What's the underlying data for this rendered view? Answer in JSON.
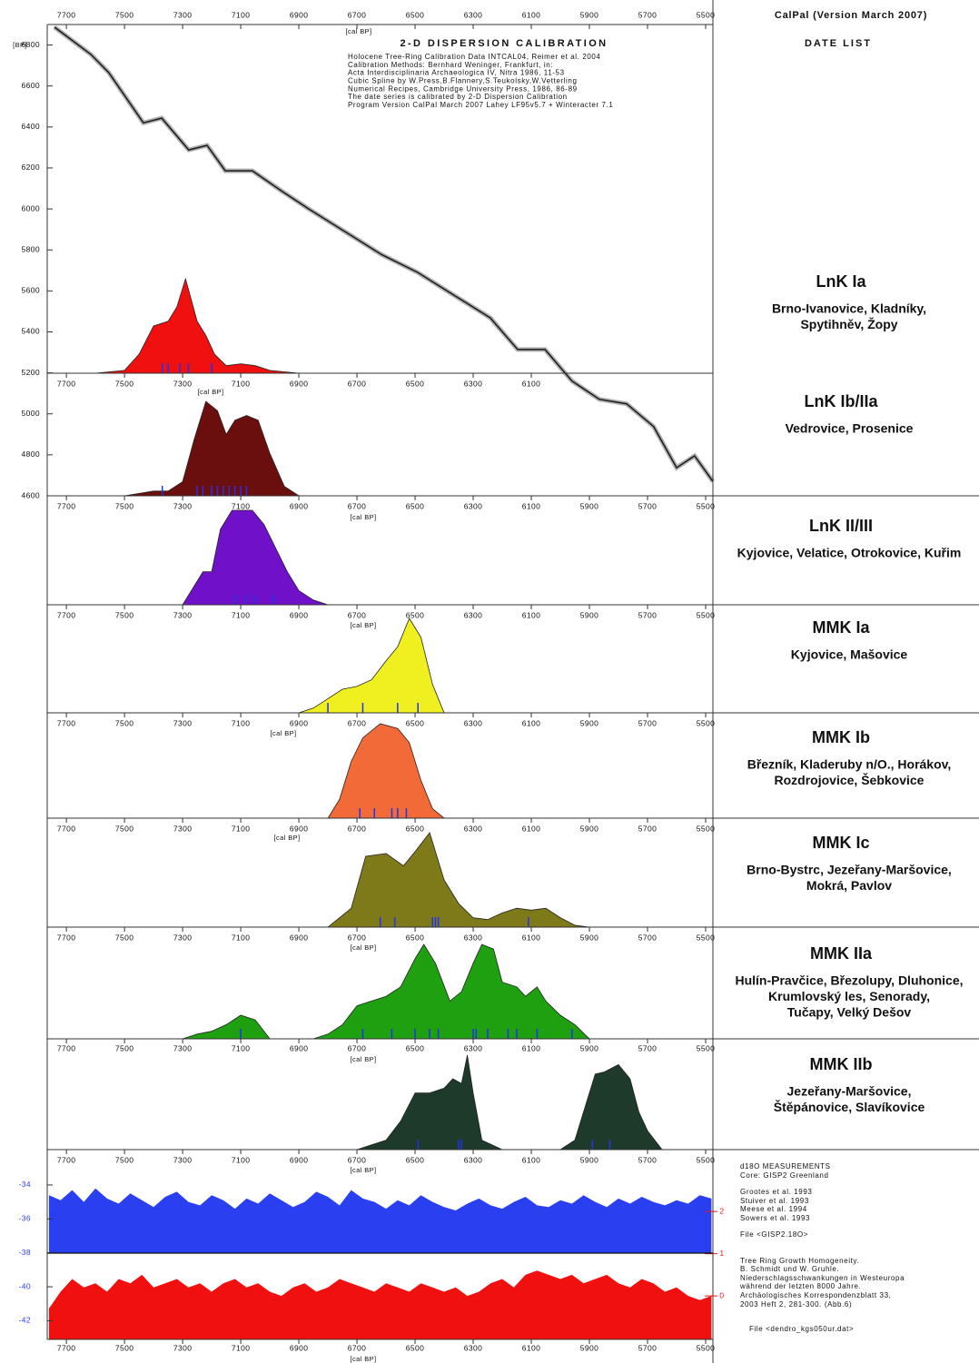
{
  "header": {
    "app": "CalPal (Version March 2007)",
    "list_title": "DATE LIST"
  },
  "chart_data": [
    {
      "type": "line",
      "title": "2-D DISPERSION CALIBRATION",
      "notes": [
        "Holocene Tree-Ring Calibration Data INTCAL04, Reimer et al. 2004",
        "Calibration Methods: Bernhard Weninger, Frankfurt, in:",
        "Acta Interdisciplinaria Archaeologica IV, Nitra 1986, 11-53",
        "Cubic Spline by W.Press,B.Flannery,S.Teukolsky,W.Vetterling",
        "Numerical Recipes, Cambridge University Press, 1986, 86-89",
        "The date series is calibrated by 2-D Dispersion Calibration",
        "Program Version CalPal March 2007 Lahey LF95v5.7 + Winteracter 7.1"
      ],
      "xlabel": "[cal BP]",
      "ylabel": "[BP]",
      "xlim": [
        7766,
        5475
      ],
      "xticks": [
        7700,
        7500,
        7300,
        7100,
        6900,
        6700,
        6500,
        6300,
        6100,
        5900,
        5700,
        5500
      ],
      "ylim": [
        4600,
        6900
      ],
      "yticks": [
        4600,
        4800,
        5000,
        5200,
        5400,
        5600,
        5800,
        6000,
        6200,
        6400,
        6600,
        6800
      ],
      "color": "#1a1a1a",
      "x": [
        7741,
        7616,
        7554,
        7435,
        7372,
        7279,
        7216,
        7153,
        7060,
        6960,
        6866,
        6741,
        6616,
        6491,
        6366,
        6241,
        6147,
        6053,
        5960,
        5866,
        5772,
        5679,
        5600,
        5538,
        5475
      ],
      "values": [
        6887,
        6754,
        6665,
        6420,
        6443,
        6288,
        6310,
        6186,
        6186,
        6088,
        6000,
        5889,
        5778,
        5690,
        5579,
        5468,
        5314,
        5314,
        5160,
        5071,
        5049,
        4938,
        4737,
        4795,
        4670
      ]
    },
    {
      "type": "area",
      "name": "LnK Ia",
      "sites": [
        "Brno-Ivanovice, Kladníky,",
        "Spytihněv, Žopy"
      ],
      "color": "#f01010",
      "date_color": "#2233ee",
      "ylim": [
        0,
        100
      ],
      "x": [
        7600,
        7500,
        7450,
        7400,
        7350,
        7320,
        7290,
        7250,
        7220,
        7190,
        7150,
        7100,
        7050,
        7000,
        6900
      ],
      "values": [
        0,
        3,
        20,
        50,
        55,
        70,
        100,
        55,
        40,
        20,
        8,
        10,
        8,
        3,
        0
      ],
      "dates": [
        7370,
        7350,
        7310,
        7280,
        7200
      ]
    },
    {
      "type": "area",
      "name": "LnK Ib/IIa",
      "sites": [
        "Vedrovice, Prosenice"
      ],
      "color": "#6b0e0e",
      "date_color": "#2233ee",
      "ylim": [
        0,
        100
      ],
      "xlabel": "[cal BP]",
      "xlim": [
        7766,
        5475
      ],
      "xticks": [
        7700,
        7500,
        7300,
        7100,
        6900,
        6700,
        6500,
        6300,
        6100
      ],
      "x": [
        7500,
        7400,
        7350,
        7300,
        7260,
        7220,
        7180,
        7150,
        7120,
        7080,
        7040,
        7000,
        6950,
        6900
      ],
      "values": [
        0,
        5,
        5,
        15,
        60,
        100,
        90,
        65,
        80,
        85,
        80,
        45,
        10,
        0
      ],
      "dates": [
        7370,
        7250,
        7230,
        7200,
        7180,
        7160,
        7140,
        7120,
        7100,
        7080
      ]
    },
    {
      "type": "area",
      "name": "LnK II/III",
      "sites": [
        "Kyjovice, Velatice, Otrokovice, Kuřim"
      ],
      "color": "#7010c8",
      "date_color": "#2233ee",
      "ylim": [
        0,
        100
      ],
      "xlabel": "[cal BP]",
      "xlim": [
        7766,
        5475
      ],
      "xticks": [
        7700,
        7500,
        7300,
        7100,
        6900,
        6700,
        6500,
        6300,
        6100,
        5900,
        5700,
        5500
      ],
      "x": [
        7300,
        7260,
        7230,
        7200,
        7170,
        7130,
        7060,
        7020,
        6980,
        6940,
        6900,
        6850,
        6800
      ],
      "values": [
        0,
        20,
        35,
        35,
        80,
        100,
        100,
        85,
        60,
        35,
        15,
        5,
        0
      ],
      "dates": [
        7120,
        7080,
        7050,
        6990
      ]
    },
    {
      "type": "area",
      "name": "MMK Ia",
      "sites": [
        "Kyjovice, Mašovice"
      ],
      "color": "#f0f020",
      "date_color": "#2233ee",
      "ylim": [
        0,
        100
      ],
      "xlabel": "[cal BP]",
      "xlim": [
        7766,
        5475
      ],
      "xticks": [
        7700,
        7500,
        7300,
        7100,
        6900,
        6700,
        6500,
        6300,
        6100,
        5900,
        5700,
        5500
      ],
      "x": [
        6900,
        6850,
        6800,
        6750,
        6700,
        6650,
        6600,
        6560,
        6520,
        6480,
        6440,
        6400
      ],
      "values": [
        0,
        5,
        15,
        25,
        28,
        35,
        55,
        70,
        100,
        80,
        30,
        0
      ],
      "dates": [
        6800,
        6680,
        6560,
        6490
      ]
    },
    {
      "type": "area",
      "name": "MMK Ib",
      "sites": [
        "Březník, Kladeruby n/O., Horákov,",
        "Rozdrojovice, Šebkovice"
      ],
      "color": "#f26a38",
      "date_color": "#2233ee",
      "ylim": [
        0,
        100
      ],
      "xlabel": "[cal BP]",
      "xlim": [
        7766,
        5475
      ],
      "xticks": [
        7700,
        7500,
        7300,
        7100,
        6900,
        6700,
        6500,
        6300,
        6100,
        5900,
        5700,
        5500
      ],
      "x": [
        6800,
        6760,
        6720,
        6680,
        6620,
        6560,
        6520,
        6480,
        6440,
        6400
      ],
      "values": [
        0,
        20,
        60,
        85,
        100,
        95,
        80,
        40,
        10,
        0
      ],
      "dates": [
        6690,
        6640,
        6580,
        6560,
        6530
      ]
    },
    {
      "type": "area",
      "name": "MMK Ic",
      "sites": [
        "Brno-Bystrc, Jezeřany-Maršovice,",
        "Mokrá, Pavlov"
      ],
      "color": "#7e7a1a",
      "date_color": "#2233ee",
      "ylim": [
        0,
        100
      ],
      "xlabel": "[cal BP]",
      "xlim": [
        7766,
        5475
      ],
      "xticks": [
        7700,
        7500,
        7300,
        7100,
        6900,
        6700,
        6500,
        6300,
        6100,
        5900,
        5700,
        5500
      ],
      "x": [
        6800,
        6720,
        6670,
        6600,
        6540,
        6500,
        6450,
        6400,
        6350,
        6300,
        6250,
        6200,
        6150,
        6100,
        6050,
        6000,
        5950,
        5900
      ],
      "values": [
        0,
        20,
        75,
        78,
        65,
        80,
        100,
        50,
        25,
        10,
        8,
        15,
        20,
        18,
        20,
        10,
        2,
        0
      ],
      "dates": [
        6620,
        6570,
        6440,
        6430,
        6420,
        6110
      ]
    },
    {
      "type": "area",
      "name": "MMK IIa",
      "sites": [
        "Hulín-Pravčice, Březolupy, Dluhonice,",
        "Krumlovský les, Senorady,",
        "Tučapy, Velký Dešov"
      ],
      "color": "#1ea010",
      "date_color": "#2233ee",
      "ylim": [
        0,
        100
      ],
      "xlabel": "[cal BP]",
      "xlim": [
        7766,
        5475
      ],
      "xticks": [
        7700,
        7500,
        7300,
        7100,
        6900,
        6700,
        6500,
        6300,
        6100,
        5900,
        5700,
        5500
      ],
      "x": [
        7300,
        7250,
        7200,
        7150,
        7100,
        7050,
        7000,
        6850,
        6800,
        6750,
        6700,
        6650,
        6600,
        6550,
        6500,
        6470,
        6430,
        6380,
        6340,
        6300,
        6270,
        6230,
        6200,
        6150,
        6120,
        6080,
        6050,
        6000,
        5950,
        5900
      ],
      "values": [
        0,
        5,
        8,
        15,
        25,
        20,
        0,
        0,
        5,
        15,
        35,
        40,
        45,
        55,
        85,
        100,
        80,
        40,
        50,
        80,
        100,
        95,
        60,
        55,
        45,
        55,
        40,
        25,
        15,
        0
      ],
      "dates": [
        7100,
        6680,
        6580,
        6500,
        6450,
        6420,
        6300,
        6290,
        6250,
        6180,
        6150,
        6080,
        5960
      ]
    },
    {
      "type": "area",
      "name": "MMK IIb",
      "sites": [
        "Jezeřany-Maršovice,",
        "Štěpánovice, Slavíkovice"
      ],
      "color": "#1e3a2a",
      "date_color": "#2233ee",
      "ylim": [
        0,
        100
      ],
      "xlabel": "[cal BP]",
      "xlim": [
        7766,
        5475
      ],
      "xticks": [
        7700,
        7500,
        7300,
        7100,
        6900,
        6700,
        6500,
        6300,
        6100,
        5900,
        5700,
        5500
      ],
      "x": [
        6700,
        6650,
        6600,
        6550,
        6500,
        6450,
        6400,
        6370,
        6340,
        6320,
        6300,
        6270,
        6200,
        6000,
        5950,
        5920,
        5880,
        5850,
        5800,
        5760,
        5730,
        5700,
        5650
      ],
      "values": [
        0,
        5,
        10,
        30,
        60,
        60,
        65,
        75,
        70,
        100,
        60,
        10,
        0,
        0,
        10,
        40,
        80,
        82,
        90,
        75,
        40,
        20,
        0
      ],
      "dates": [
        6490,
        6350,
        6340,
        5890,
        5830
      ]
    },
    {
      "type": "area",
      "d18o_notes": [
        "d18O MEASUREMENTS",
        "Core: GISP2 Greenland",
        "Grootes et al. 1993",
        "Stuiver et al. 1993",
        "Meese et al. 1994",
        "Sowers et al. 1993",
        "File <GISP2.18O>"
      ],
      "tree_ring_notes": [
        "Tree Ring Growth Homogeneity.",
        "B. Schmidt und W. Gruhle.",
        "Niederschlagsschwankungen in Westeuropa",
        "während der letzten 8000 Jahre.",
        "Archäologisches Korrespondenzblatt 33,",
        "2003 Heft 2, 281-300. (Abb.6)",
        "File <dendro_kgs050ur.dat>"
      ],
      "xlabel": "[cal BP]",
      "xlim": [
        7766,
        5475
      ],
      "xticks": [
        7700,
        7500,
        7300,
        7100,
        6900,
        6700,
        6500,
        6300,
        6100,
        5900,
        5700,
        5500
      ],
      "ylim": [
        -43.1,
        -33.2
      ],
      "yticks": [
        -42,
        -40,
        -38,
        -36,
        -34
      ],
      "y2lim": [
        -1.03,
        2.95
      ],
      "y2ticks": [
        0,
        1,
        2
      ],
      "x": [
        7760,
        7720,
        7680,
        7640,
        7600,
        7560,
        7520,
        7480,
        7440,
        7400,
        7360,
        7320,
        7280,
        7240,
        7200,
        7160,
        7120,
        7080,
        7040,
        7000,
        6960,
        6920,
        6880,
        6840,
        6800,
        6760,
        6720,
        6680,
        6640,
        6600,
        6560,
        6520,
        6480,
        6440,
        6400,
        6360,
        6320,
        6280,
        6240,
        6200,
        6160,
        6120,
        6080,
        6040,
        6000,
        5960,
        5920,
        5880,
        5840,
        5800,
        5760,
        5720,
        5680,
        5640,
        5600,
        5560,
        5520,
        5480
      ],
      "series": [
        {
          "color": "#2a3ff0",
          "values": [
            -34.6,
            -34.9,
            -34.3,
            -35.0,
            -34.2,
            -34.8,
            -35.1,
            -34.5,
            -34.9,
            -35.3,
            -34.7,
            -34.4,
            -35.0,
            -35.2,
            -34.6,
            -34.9,
            -35.4,
            -34.8,
            -35.1,
            -34.5,
            -34.9,
            -35.3,
            -35.0,
            -34.4,
            -34.7,
            -35.2,
            -34.3,
            -34.8,
            -35.0,
            -35.4,
            -34.9,
            -35.2,
            -34.6,
            -35.0,
            -35.3,
            -35.5,
            -35.1,
            -34.8,
            -35.2,
            -35.4,
            -35.0,
            -34.7,
            -35.2,
            -35.3,
            -34.9,
            -35.1,
            -34.6,
            -35.0,
            -35.3,
            -34.8,
            -35.1,
            -34.7,
            -35.0,
            -35.2,
            -34.9,
            -35.1,
            -34.6,
            -34.8
          ]
        },
        {
          "color": "#f01010",
          "axis": "y2",
          "values": [
            -0.3,
            0.1,
            0.4,
            0.2,
            0.3,
            0.1,
            0.4,
            0.3,
            0.5,
            0.2,
            0.3,
            0.4,
            0.2,
            0.3,
            0.1,
            0.3,
            0.4,
            0.2,
            0.3,
            0.1,
            0.0,
            0.2,
            0.3,
            0.1,
            0.2,
            0.4,
            0.3,
            0.2,
            0.1,
            0.3,
            0.2,
            0.1,
            0.3,
            0.2,
            0.1,
            0.2,
            0.0,
            0.1,
            0.3,
            0.4,
            0.2,
            0.5,
            0.6,
            0.5,
            0.4,
            0.5,
            0.3,
            0.4,
            0.5,
            0.3,
            0.2,
            0.4,
            0.3,
            0.1,
            0.2,
            0.0,
            -0.1,
            0.0
          ]
        }
      ]
    }
  ]
}
